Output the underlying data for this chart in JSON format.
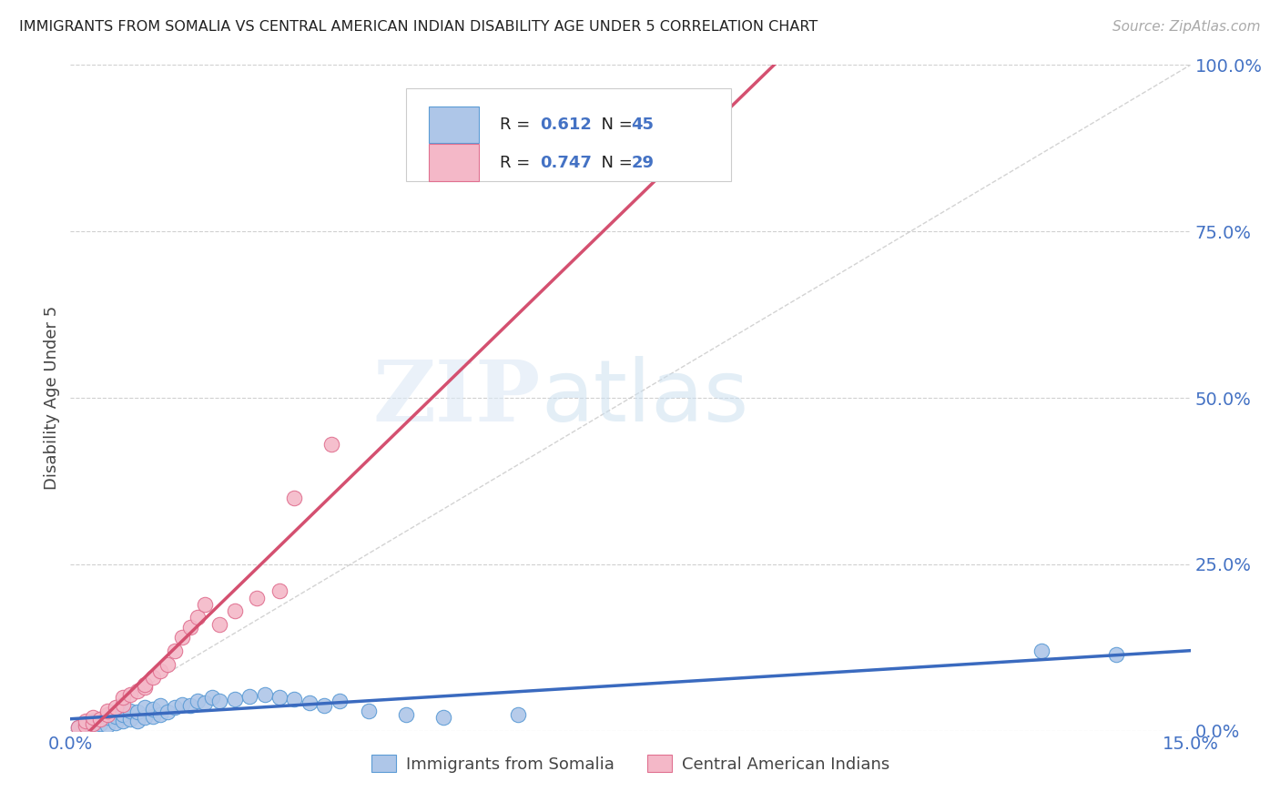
{
  "title": "IMMIGRANTS FROM SOMALIA VS CENTRAL AMERICAN INDIAN DISABILITY AGE UNDER 5 CORRELATION CHART",
  "source": "Source: ZipAtlas.com",
  "ylabel": "Disability Age Under 5",
  "x_min": 0.0,
  "x_max": 0.15,
  "y_min": 0.0,
  "y_max": 1.0,
  "x_ticks": [
    0.0,
    0.03,
    0.06,
    0.09,
    0.12,
    0.15
  ],
  "y_tick_labels_right": [
    "0.0%",
    "25.0%",
    "50.0%",
    "75.0%",
    "100.0%"
  ],
  "y_ticks_right": [
    0.0,
    0.25,
    0.5,
    0.75,
    1.0
  ],
  "somalia_color": "#aec6e8",
  "somalia_edge_color": "#5b9bd5",
  "central_color": "#f4b8c8",
  "central_edge_color": "#e07090",
  "trend_somalia_color": "#3a6abf",
  "trend_central_color": "#d45070",
  "diag_color": "#c8c8c8",
  "R_somalia": 0.612,
  "N_somalia": 45,
  "R_central": 0.747,
  "N_central": 29,
  "somalia_x": [
    0.001,
    0.002,
    0.002,
    0.003,
    0.003,
    0.004,
    0.004,
    0.005,
    0.005,
    0.006,
    0.006,
    0.007,
    0.007,
    0.008,
    0.008,
    0.009,
    0.009,
    0.01,
    0.01,
    0.011,
    0.011,
    0.012,
    0.012,
    0.013,
    0.014,
    0.015,
    0.016,
    0.017,
    0.018,
    0.019,
    0.02,
    0.022,
    0.024,
    0.026,
    0.028,
    0.03,
    0.032,
    0.034,
    0.036,
    0.04,
    0.045,
    0.05,
    0.06,
    0.13,
    0.14
  ],
  "somalia_y": [
    0.005,
    0.008,
    0.012,
    0.007,
    0.015,
    0.01,
    0.018,
    0.008,
    0.02,
    0.012,
    0.022,
    0.015,
    0.025,
    0.018,
    0.03,
    0.015,
    0.028,
    0.02,
    0.035,
    0.022,
    0.032,
    0.025,
    0.038,
    0.028,
    0.035,
    0.04,
    0.038,
    0.045,
    0.042,
    0.05,
    0.045,
    0.048,
    0.052,
    0.055,
    0.05,
    0.048,
    0.042,
    0.038,
    0.045,
    0.03,
    0.025,
    0.02,
    0.025,
    0.12,
    0.115
  ],
  "central_x": [
    0.001,
    0.002,
    0.002,
    0.003,
    0.003,
    0.004,
    0.005,
    0.005,
    0.006,
    0.007,
    0.007,
    0.008,
    0.009,
    0.01,
    0.01,
    0.011,
    0.012,
    0.013,
    0.014,
    0.015,
    0.016,
    0.017,
    0.018,
    0.02,
    0.022,
    0.025,
    0.028,
    0.03,
    0.035
  ],
  "central_y": [
    0.005,
    0.008,
    0.015,
    0.01,
    0.02,
    0.018,
    0.025,
    0.03,
    0.035,
    0.04,
    0.05,
    0.055,
    0.06,
    0.065,
    0.07,
    0.08,
    0.09,
    0.1,
    0.12,
    0.14,
    0.155,
    0.17,
    0.19,
    0.16,
    0.18,
    0.2,
    0.21,
    0.35,
    0.43
  ],
  "trend_somalia_intercept": -0.005,
  "trend_somalia_slope": 0.82,
  "trend_central_intercept": -0.025,
  "trend_central_slope": 13.5,
  "legend_somalia_label": "Immigrants from Somalia",
  "legend_central_label": "Central American Indians",
  "watermark_zip": "ZIP",
  "watermark_atlas": "atlas",
  "background_color": "#ffffff",
  "grid_color": "#d0d0d0"
}
